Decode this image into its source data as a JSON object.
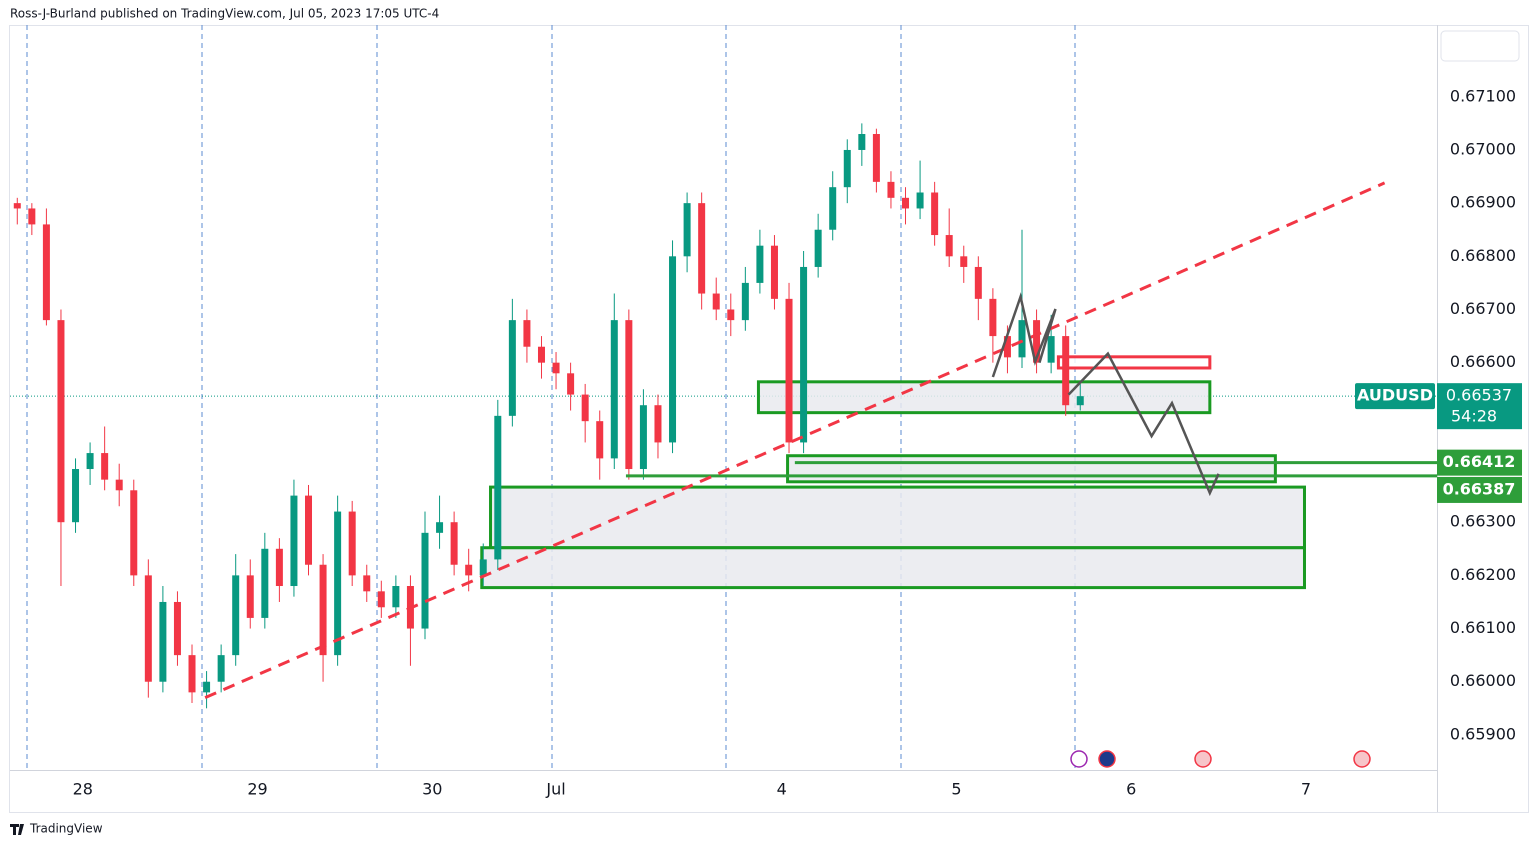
{
  "header": "Ross-J-Burland published on TradingView.com, Jul 05, 2023 17:05 UTC-4",
  "footer": "TradingView",
  "chart_data": {
    "type": "candlestick",
    "symbol": "AUDUSD",
    "up_color": "#089981",
    "down_color": "#f23645",
    "xlim": [
      0,
      98
    ],
    "ylim": [
      0.65834,
      0.67235
    ],
    "xticks": [
      {
        "value": 5,
        "label": "28"
      },
      {
        "value": 17,
        "label": "29"
      },
      {
        "value": 29,
        "label": "30"
      },
      {
        "value": 37.5,
        "label": "Jul"
      },
      {
        "value": 53,
        "label": "4"
      },
      {
        "value": 65,
        "label": "5"
      },
      {
        "value": 77,
        "label": "6"
      },
      {
        "value": 89,
        "label": "7"
      }
    ],
    "yticks": [
      {
        "value": 0.659,
        "label": "0.65900"
      },
      {
        "value": 0.66,
        "label": "0.66000"
      },
      {
        "value": 0.661,
        "label": "0.66100"
      },
      {
        "value": 0.662,
        "label": "0.66200"
      },
      {
        "value": 0.663,
        "label": "0.66300"
      },
      {
        "value": 0.664,
        "label": "0.66400"
      },
      {
        "value": 0.665,
        "label": "0.66500"
      },
      {
        "value": 0.666,
        "label": "0.66600"
      },
      {
        "value": 0.667,
        "label": "0.66700"
      },
      {
        "value": 0.668,
        "label": "0.66800"
      },
      {
        "value": 0.669,
        "label": "0.66900"
      },
      {
        "value": 0.67,
        "label": "0.67000"
      },
      {
        "value": 0.671,
        "label": "0.67100"
      }
    ],
    "open": [
      0.669,
      0.6689,
      0.6686,
      0.6668,
      0.663,
      0.664,
      0.6643,
      0.6638,
      0.6636,
      0.662,
      0.66,
      0.6615,
      0.6605,
      0.6598,
      0.66,
      0.6605,
      0.662,
      0.6612,
      0.6625,
      0.6618,
      0.6635,
      0.6622,
      0.6605,
      0.6632,
      0.662,
      0.6617,
      0.6614,
      0.6618,
      0.661,
      0.6628,
      0.663,
      0.6622,
      0.662,
      0.6623,
      0.665,
      0.6668,
      0.6663,
      0.666,
      0.6658,
      0.6654,
      0.6649,
      0.6642,
      0.6668,
      0.664,
      0.6652,
      0.6645,
      0.668,
      0.669,
      0.6673,
      0.667,
      0.6668,
      0.6675,
      0.6682,
      0.6672,
      0.6645,
      0.6678,
      0.6685,
      0.6693,
      0.67,
      0.6703,
      0.6694,
      0.6691,
      0.6689,
      0.6692,
      0.6684,
      0.668,
      0.6678,
      0.6672,
      0.6665,
      0.6661,
      0.6668,
      0.666,
      0.6665,
      0.6652
    ],
    "high": [
      0.6691,
      0.669,
      0.6689,
      0.667,
      0.6642,
      0.6645,
      0.6648,
      0.6641,
      0.6638,
      0.6623,
      0.6618,
      0.6617,
      0.6607,
      0.6602,
      0.6607,
      0.6624,
      0.6623,
      0.6628,
      0.6627,
      0.6638,
      0.6637,
      0.6624,
      0.6635,
      0.6634,
      0.6622,
      0.6619,
      0.662,
      0.662,
      0.6632,
      0.6635,
      0.6632,
      0.6625,
      0.6626,
      0.6653,
      0.6672,
      0.667,
      0.6665,
      0.6662,
      0.666,
      0.6656,
      0.6651,
      0.6673,
      0.667,
      0.6655,
      0.6654,
      0.6683,
      0.6692,
      0.6692,
      0.6676,
      0.6673,
      0.6678,
      0.6685,
      0.6684,
      0.6675,
      0.6681,
      0.6688,
      0.6696,
      0.6702,
      0.6705,
      0.6704,
      0.6696,
      0.6693,
      0.6698,
      0.6694,
      0.6689,
      0.6682,
      0.668,
      0.6674,
      0.6667,
      0.6685,
      0.667,
      0.6669,
      0.6667,
      0.6656
    ],
    "low": [
      0.6686,
      0.6684,
      0.6667,
      0.6618,
      0.6628,
      0.6637,
      0.6636,
      0.6633,
      0.6618,
      0.6597,
      0.6598,
      0.6603,
      0.6596,
      0.6595,
      0.6598,
      0.6603,
      0.661,
      0.661,
      0.6615,
      0.6616,
      0.662,
      0.66,
      0.6603,
      0.6618,
      0.6615,
      0.6612,
      0.6612,
      0.6603,
      0.6608,
      0.6625,
      0.662,
      0.6617,
      0.6618,
      0.6621,
      0.6648,
      0.666,
      0.6657,
      0.6655,
      0.6651,
      0.6645,
      0.6638,
      0.664,
      0.6638,
      0.6638,
      0.6642,
      0.6643,
      0.6677,
      0.667,
      0.6668,
      0.6665,
      0.6666,
      0.6673,
      0.667,
      0.6643,
      0.6643,
      0.6676,
      0.6683,
      0.669,
      0.6697,
      0.6692,
      0.6689,
      0.6686,
      0.6687,
      0.6682,
      0.6678,
      0.6675,
      0.6668,
      0.666,
      0.6658,
      0.6659,
      0.6658,
      0.6658,
      0.665,
      0.6651
    ],
    "close": [
      0.6689,
      0.6686,
      0.6668,
      0.663,
      0.664,
      0.6643,
      0.6638,
      0.6636,
      0.662,
      0.66,
      0.6615,
      0.6605,
      0.6598,
      0.66,
      0.6605,
      0.662,
      0.6612,
      0.6625,
      0.6618,
      0.6635,
      0.6622,
      0.6605,
      0.6632,
      0.662,
      0.6617,
      0.6614,
      0.6618,
      0.661,
      0.6628,
      0.663,
      0.6622,
      0.662,
      0.6623,
      0.665,
      0.6668,
      0.6663,
      0.666,
      0.6658,
      0.6654,
      0.6649,
      0.6642,
      0.6668,
      0.664,
      0.6652,
      0.6645,
      0.668,
      0.669,
      0.6673,
      0.667,
      0.6668,
      0.6675,
      0.6682,
      0.6672,
      0.6645,
      0.6678,
      0.6685,
      0.6693,
      0.67,
      0.6703,
      0.6694,
      0.6691,
      0.6689,
      0.6692,
      0.6684,
      0.668,
      0.6678,
      0.6672,
      0.6665,
      0.6661,
      0.6668,
      0.666,
      0.6665,
      0.6652,
      0.66537
    ],
    "last_price": {
      "value": 0.66537,
      "countdown": "54:28"
    },
    "levels": [
      {
        "value": 0.66412,
        "x_start": 53.9,
        "color": "#2e9e3a"
      },
      {
        "value": 0.66387,
        "x_start": 42.3,
        "color": "#2e9e3a"
      }
    ],
    "zones": [
      {
        "x": [
          51.4,
          82.4
        ],
        "y": [
          0.66506,
          0.66564
        ],
        "color": "#1a9a22",
        "fill": "#e9eaee"
      },
      {
        "x": [
          53.4,
          86.9
        ],
        "y": [
          0.66376,
          0.66425
        ],
        "color": "#1a9a22",
        "fill": "#e9eaee"
      },
      {
        "x": [
          33.0,
          88.9
        ],
        "y": [
          0.66252,
          0.66366
        ],
        "color": "#1a9a22",
        "fill": "#e9eaee"
      },
      {
        "x": [
          32.4,
          88.9
        ],
        "y": [
          0.66177,
          0.66252
        ],
        "color": "#1a9a22",
        "fill": "#e9eaee"
      },
      {
        "x": [
          72.0,
          82.4
        ],
        "y": [
          0.6659,
          0.66611
        ],
        "color": "#f23645",
        "fill": "#ffffff"
      }
    ],
    "trendline": {
      "x": [
        13.4,
        94.4
      ],
      "y": [
        0.6597,
        0.66938
      ],
      "color": "#f23645"
    },
    "paths": [
      {
        "x": [
          67.5,
          69.4,
          70.4,
          71.8,
          70.7
        ],
        "y": [
          0.66573,
          0.66724,
          0.66602,
          0.66701,
          0.666
        ],
        "color": "#555555"
      },
      {
        "x": [
          72.7,
          75.4,
          78.4,
          79.8,
          82.4,
          83.0
        ],
        "y": [
          0.6654,
          0.66617,
          0.66462,
          0.66524,
          0.66355,
          0.66391
        ],
        "color": "#555555"
      }
    ]
  }
}
